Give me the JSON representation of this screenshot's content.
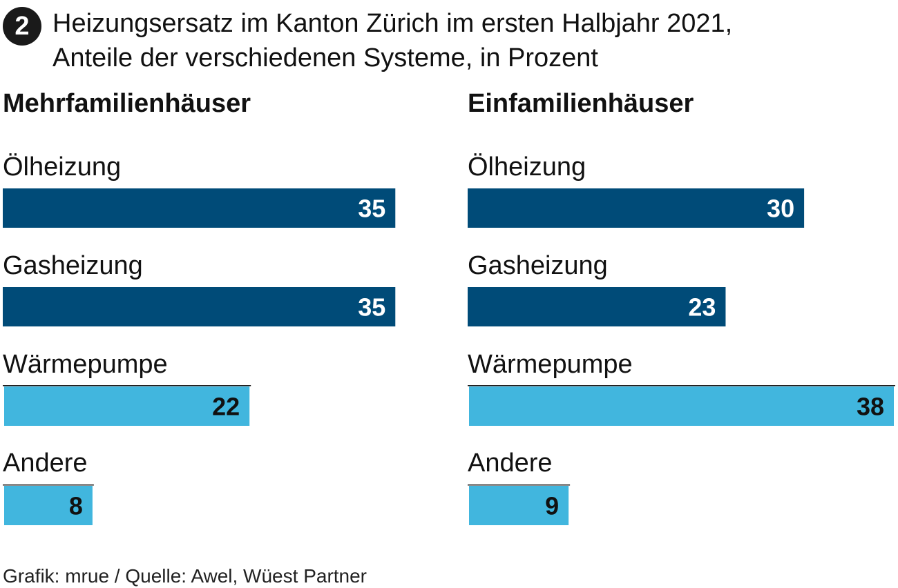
{
  "header": {
    "badge": "2",
    "title_line1": "Heizungsersatz im Kanton Zürich im ersten Halbjahr 2021,",
    "title_line2": "Anteile der verschiedenen Systeme, in Prozent"
  },
  "colors": {
    "dark_blue": "#004b78",
    "light_blue": "#41b6de",
    "text": "#111111",
    "label_on_dark": "#ffffff",
    "label_on_light": "#111111"
  },
  "chart_data": [
    {
      "type": "bar",
      "orientation": "horizontal",
      "title": "Mehrfamilienhäuser",
      "unit": "Prozent",
      "categories": [
        "Ölheizung",
        "Gasheizung",
        "Wärmepumpe",
        "Andere"
      ],
      "values": [
        35,
        35,
        22,
        8
      ],
      "bar_colors": [
        "#004b78",
        "#004b78",
        "#41b6de",
        "#41b6de"
      ],
      "xlim": [
        0,
        38
      ]
    },
    {
      "type": "bar",
      "orientation": "horizontal",
      "title": "Einfamilienhäuser",
      "unit": "Prozent",
      "categories": [
        "Ölheizung",
        "Gasheizung",
        "Wärmepumpe",
        "Andere"
      ],
      "values": [
        30,
        23,
        38,
        9
      ],
      "bar_colors": [
        "#004b78",
        "#004b78",
        "#41b6de",
        "#41b6de"
      ],
      "xlim": [
        0,
        38
      ]
    }
  ],
  "footer": {
    "source": "Grafik: mrue / Quelle: Awel, Wüest Partner"
  }
}
